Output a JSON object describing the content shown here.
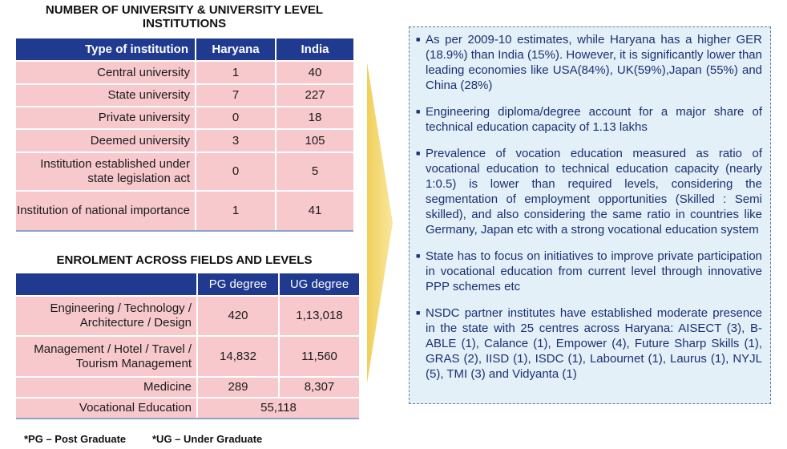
{
  "institutions": {
    "title": "NUMBER OF UNIVERSITY & UNIVERSITY LEVEL INSTITUTIONS",
    "headers": [
      "Type of institution",
      "Haryana",
      "India"
    ],
    "rows": [
      [
        "Central university",
        "1",
        "40"
      ],
      [
        "State university",
        "7",
        "227"
      ],
      [
        "Private university",
        "0",
        "18"
      ],
      [
        "Deemed university",
        "3",
        "105"
      ],
      [
        "Institution established under state legislation act",
        "0",
        "5"
      ],
      [
        "Institution of national importance",
        "1",
        "41"
      ]
    ]
  },
  "enrolment": {
    "title": "ENROLMENT ACROSS FIELDS AND LEVELS",
    "headers": [
      "",
      "PG degree",
      "UG degree"
    ],
    "rows": [
      [
        "Engineering / Technology / Architecture / Design",
        "420",
        "1,13,018"
      ],
      [
        "Management / Hotel / Travel / Tourism Management",
        "14,832",
        "11,560"
      ],
      [
        "Medicine",
        "289",
        "8,307"
      ]
    ],
    "vocational": {
      "label": "Vocational Education",
      "value": "55,118"
    }
  },
  "footnotes": [
    "*PG – Post Graduate",
    "*UG – Under Graduate"
  ],
  "notes": [
    "As per 2009-10 estimates, while Haryana has a higher GER (18.9%) than India (15%). However, it is significantly lower than leading economies like USA(84%), UK(59%),Japan (55%) and China (28%)",
    "Engineering diploma/degree account for a major share of technical education capacity of 1.13 lakhs",
    "Prevalence of vocation education measured as ratio of vocational education to technical education capacity (nearly 1:0.5) is lower than required levels, considering the segmentation of employment opportunities (Skilled : Semi skilled), and also considering the same ratio in countries like Germany, Japan etc with a strong vocational education system",
    "State has to focus on initiatives to improve private participation in vocational education from current level through innovative PPP schemes etc",
    "NSDC partner institutes have established moderate presence in the state with 25 centres across Haryana: AISECT (3), B-ABLE (1), Calance (1), Empower (4), Future Sharp Skills (1), GRAS (2), IISD (1), ISDC (1), Labournet (1), Laurus (1), NYJL (5), TMI (3) and Vidyanta (1)"
  ],
  "colors": {
    "header_bg": "#1f3a8f",
    "cell_bg": "#f7c9cd",
    "arrow": "#f5dc7a",
    "notes_bg": "#e3f0f8",
    "notes_text": "#1b2f73"
  }
}
